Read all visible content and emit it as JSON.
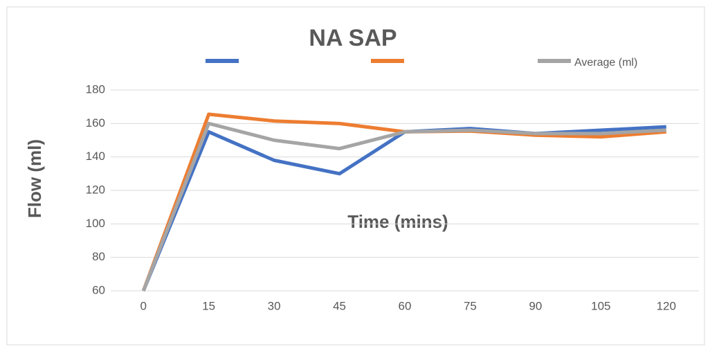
{
  "chart_data": {
    "type": "line",
    "title": "NA SAP",
    "xlabel": "Time (mins)",
    "ylabel": "Flow (ml)",
    "categories": [
      0,
      15,
      30,
      45,
      60,
      75,
      90,
      105,
      120
    ],
    "series": [
      {
        "color": "#4472c4",
        "values": [
          60,
          155,
          138,
          130,
          155,
          157,
          154,
          156,
          158
        ]
      },
      {
        "color": "#ed7d31",
        "values": [
          60,
          165.5,
          161.5,
          160,
          155,
          155.5,
          153,
          152,
          155
        ]
      },
      {
        "name": "Average (ml)",
        "color": "#a5a5a5",
        "values": [
          60,
          160,
          150,
          145,
          155,
          156,
          154,
          154,
          156
        ]
      }
    ],
    "ylim": [
      60,
      180
    ],
    "yticks": [
      60,
      80,
      100,
      120,
      140,
      160,
      180
    ],
    "grid": true,
    "legend": "top"
  }
}
